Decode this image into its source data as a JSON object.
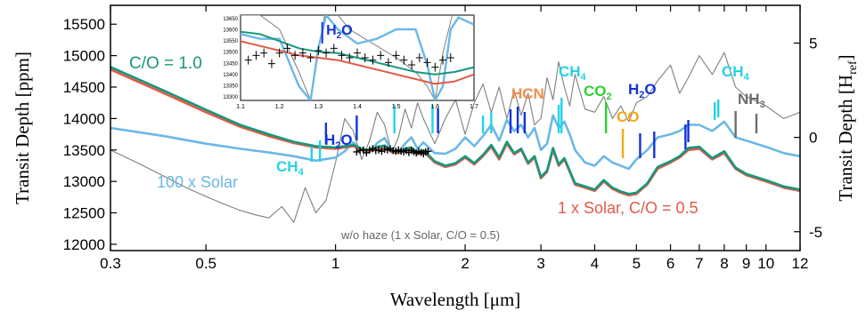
{
  "chart_data": {
    "type": "line",
    "xscale": "log",
    "xlim": [
      0.3,
      12
    ],
    "ylim": [
      11900,
      15800
    ],
    "y2lim": [
      -6,
      7
    ],
    "xlabel": "Wavelength [μm]",
    "ylabel": "Transit Depth [ppm]",
    "y2label": "Transit Depth [H",
    "y2label_sub": "ref",
    "y2label_close": "]",
    "x_ticks": [
      0.3,
      0.5,
      1,
      2,
      3,
      4,
      5,
      6,
      7,
      8,
      9,
      10,
      12
    ],
    "x_tick_labels": [
      "0.3",
      "0.5",
      "1",
      "2",
      "3",
      "4",
      "5",
      "6",
      "7",
      "8",
      "9",
      "10",
      "12"
    ],
    "y_ticks": [
      12000,
      12500,
      13000,
      13500,
      14000,
      14500,
      15000,
      15500
    ],
    "y_tick_labels": [
      "12000",
      "12500",
      "13000",
      "13500",
      "14000",
      "14500",
      "15000",
      "15500"
    ],
    "y2_ticks": [
      -5,
      0,
      5
    ],
    "y2_tick_labels": [
      "-5",
      "0",
      "5"
    ],
    "series": [
      {
        "color": "#7f7f7f",
        "x": [
          0.3,
          0.35,
          0.4,
          0.45,
          0.5,
          0.55,
          0.6,
          0.65,
          0.7,
          0.75,
          0.8,
          0.85,
          0.9,
          0.95,
          1.0,
          1.05,
          1.1,
          1.15,
          1.2,
          1.25,
          1.3,
          1.35,
          1.4,
          1.45,
          1.5,
          1.55,
          1.6,
          1.7,
          1.8,
          1.9,
          2.0,
          2.1,
          2.2,
          2.3,
          2.4,
          2.5,
          2.6,
          2.7,
          2.8,
          2.9,
          3.0,
          3.1,
          3.2,
          3.3,
          3.4,
          3.5,
          3.6,
          3.8,
          4.0,
          4.2,
          4.4,
          4.6,
          4.8,
          5.0,
          5.3,
          5.6,
          6.0,
          6.3,
          6.6,
          7.0,
          7.5,
          8.0,
          8.5,
          9.0,
          10.0,
          11.0,
          12.0
        ],
        "y": [
          13500,
          13280,
          13080,
          12900,
          12760,
          12640,
          12540,
          12470,
          12420,
          12600,
          12350,
          12900,
          12500,
          12700,
          13300,
          14000,
          13800,
          13350,
          13650,
          14100,
          13900,
          13450,
          13700,
          14150,
          13850,
          14250,
          14000,
          13600,
          14000,
          14300,
          13750,
          14250,
          14550,
          14100,
          14500,
          14000,
          14450,
          14050,
          14400,
          13900,
          14000,
          14650,
          14300,
          14900,
          14500,
          14200,
          14700,
          14150,
          14100,
          14350,
          14000,
          14200,
          13950,
          14250,
          14350,
          14600,
          14850,
          14400,
          14650,
          15000,
          14700,
          15050,
          14500,
          14350,
          14200,
          14000,
          14100
        ]
      },
      {
        "color": "#6bb8e6",
        "x": [
          0.3,
          0.4,
          0.5,
          0.6,
          0.7,
          0.8,
          0.9,
          1.0,
          1.05,
          1.1,
          1.15,
          1.2,
          1.25,
          1.3,
          1.35,
          1.4,
          1.45,
          1.5,
          1.55,
          1.6,
          1.7,
          1.8,
          1.9,
          2.0,
          2.1,
          2.2,
          2.3,
          2.4,
          2.5,
          2.6,
          2.7,
          2.8,
          2.9,
          3.0,
          3.1,
          3.2,
          3.3,
          3.4,
          3.5,
          3.6,
          3.8,
          4.0,
          4.2,
          4.4,
          4.6,
          4.8,
          5.0,
          5.3,
          5.6,
          6.0,
          6.3,
          6.6,
          7.0,
          7.5,
          8.0,
          8.5,
          9.0,
          10.0,
          11.0,
          12.0
        ],
        "y": [
          13850,
          13720,
          13600,
          13520,
          13460,
          13400,
          13330,
          13380,
          13480,
          13620,
          13500,
          13470,
          13610,
          13690,
          13490,
          13450,
          13600,
          13700,
          13520,
          13620,
          13450,
          13440,
          13520,
          13700,
          13560,
          13720,
          13900,
          13650,
          13980,
          13800,
          13900,
          13700,
          13850,
          13500,
          13600,
          14050,
          13850,
          13950,
          13750,
          13500,
          13300,
          13250,
          13400,
          13300,
          13250,
          13200,
          13350,
          13500,
          13700,
          13750,
          13800,
          13900,
          13900,
          13800,
          13950,
          13700,
          13650,
          13550,
          13450,
          13400
        ]
      },
      {
        "color": "#e15a47",
        "x": [
          0.3,
          0.4,
          0.5,
          0.6,
          0.7,
          0.8,
          0.9,
          1.0,
          1.05,
          1.1,
          1.15,
          1.2,
          1.25,
          1.3,
          1.35,
          1.4,
          1.45,
          1.5,
          1.55,
          1.6,
          1.7,
          1.8,
          1.9,
          2.0,
          2.1,
          2.2,
          2.3,
          2.4,
          2.5,
          2.6,
          2.7,
          2.8,
          2.9,
          3.0,
          3.1,
          3.2,
          3.3,
          3.4,
          3.5,
          3.6,
          3.8,
          4.0,
          4.2,
          4.4,
          4.6,
          4.8,
          5.0,
          5.3,
          5.6,
          6.0,
          6.3,
          6.6,
          7.0,
          7.5,
          8.0,
          8.5,
          9.0,
          10.0,
          11.0,
          12.0
        ],
        "y": [
          14780,
          14400,
          14100,
          13870,
          13720,
          13610,
          13540,
          13520,
          13540,
          13560,
          13500,
          13480,
          13530,
          13550,
          13470,
          13450,
          13500,
          13520,
          13430,
          13480,
          13300,
          13230,
          13270,
          13380,
          13270,
          13400,
          13550,
          13350,
          13600,
          13430,
          13500,
          13280,
          13380,
          13050,
          13150,
          13500,
          13250,
          13350,
          13150,
          12950,
          12900,
          12850,
          13000,
          12880,
          12820,
          12780,
          12800,
          12950,
          13200,
          13300,
          13380,
          13500,
          13520,
          13350,
          13450,
          13200,
          13100,
          13000,
          12900,
          12850
        ]
      },
      {
        "color": "#16977b",
        "x": [
          0.3,
          0.4,
          0.5,
          0.6,
          0.7,
          0.8,
          0.9,
          1.0,
          1.05,
          1.1,
          1.15,
          1.2,
          1.25,
          1.3,
          1.35,
          1.4,
          1.45,
          1.5,
          1.55,
          1.6,
          1.7,
          1.8,
          1.9,
          2.0,
          2.1,
          2.2,
          2.3,
          2.4,
          2.5,
          2.6,
          2.7,
          2.8,
          2.9,
          3.0,
          3.1,
          3.2,
          3.3,
          3.4,
          3.5,
          3.6,
          3.8,
          4.0,
          4.2,
          4.4,
          4.6,
          4.8,
          5.0,
          5.3,
          5.6,
          6.0,
          6.3,
          6.6,
          7.0,
          7.5,
          8.0,
          8.5,
          9.0,
          10.0,
          11.0,
          12.0
        ],
        "y": [
          14820,
          14440,
          14140,
          13900,
          13750,
          13630,
          13560,
          13540,
          13560,
          13580,
          13520,
          13500,
          13550,
          13570,
          13490,
          13470,
          13520,
          13540,
          13450,
          13500,
          13320,
          13250,
          13290,
          13400,
          13290,
          13420,
          13580,
          13380,
          13630,
          13450,
          13520,
          13300,
          13400,
          13070,
          13170,
          13530,
          13270,
          13370,
          13170,
          12970,
          12920,
          12870,
          13020,
          12900,
          12840,
          12800,
          12820,
          12970,
          13230,
          13320,
          13400,
          13530,
          13550,
          13370,
          13480,
          13220,
          13120,
          13020,
          12920,
          12870
        ]
      }
    ],
    "observations": {
      "x": [
        1.12,
        1.14,
        1.16,
        1.18,
        1.2,
        1.22,
        1.24,
        1.26,
        1.28,
        1.3,
        1.32,
        1.34,
        1.36,
        1.38,
        1.4,
        1.42,
        1.44,
        1.46,
        1.48,
        1.5,
        1.52,
        1.54,
        1.56,
        1.58,
        1.6,
        1.62,
        1.64
      ],
      "y": [
        13470,
        13490,
        13500,
        13455,
        13500,
        13520,
        13490,
        13500,
        13480,
        13510,
        13500,
        13520,
        13490,
        13480,
        13500,
        13480,
        13470,
        13490,
        13460,
        13490,
        13470,
        13450,
        13480,
        13460,
        13440,
        13470,
        13480
      ]
    },
    "annotations": [
      {
        "text": "C/O = 1.0",
        "color": "#16977b"
      },
      {
        "text": "100 x Solar",
        "color": "#6bb8e6"
      },
      {
        "text": "1 x Solar, C/O = 0.5",
        "color": "#e15a47"
      },
      {
        "text": "w/o haze (1 x Solar, C/O = 0.5)",
        "color": "#666666"
      }
    ],
    "species": [
      {
        "name": "CH",
        "sub": "4",
        "color": "#22d3e6"
      },
      {
        "name": "H",
        "sub": "2",
        "tail": "O",
        "color": "#1233d8"
      },
      {
        "name": "HCN",
        "sub": "",
        "color": "#f08c4a"
      },
      {
        "name": "CH",
        "sub": "4",
        "color": "#22d3e6"
      },
      {
        "name": "CO",
        "sub": "2",
        "color": "#2ed12e"
      },
      {
        "name": "H",
        "sub": "2",
        "tail": "O",
        "color": "#1233d8"
      },
      {
        "name": "CO",
        "sub": "",
        "color": "#f2a81c"
      },
      {
        "name": "CH",
        "sub": "4",
        "color": "#22d3e6"
      },
      {
        "name": "NH",
        "sub": "3",
        "color": "#6d6d6d"
      }
    ],
    "inset": {
      "xlim": [
        1.1,
        1.7
      ],
      "ylim": [
        13300,
        13660
      ],
      "x_tick_labels": [
        "1.1",
        "1.2",
        "1.3",
        "1.4",
        "1.5",
        "1.6",
        "1.7"
      ],
      "y_tick_labels": [
        "13300",
        "13350",
        "13400",
        "13450",
        "13500",
        "13550",
        "13600",
        "13650"
      ],
      "label": {
        "name": "H",
        "sub": "2",
        "tail": "O",
        "color": "#1233d8"
      }
    }
  }
}
